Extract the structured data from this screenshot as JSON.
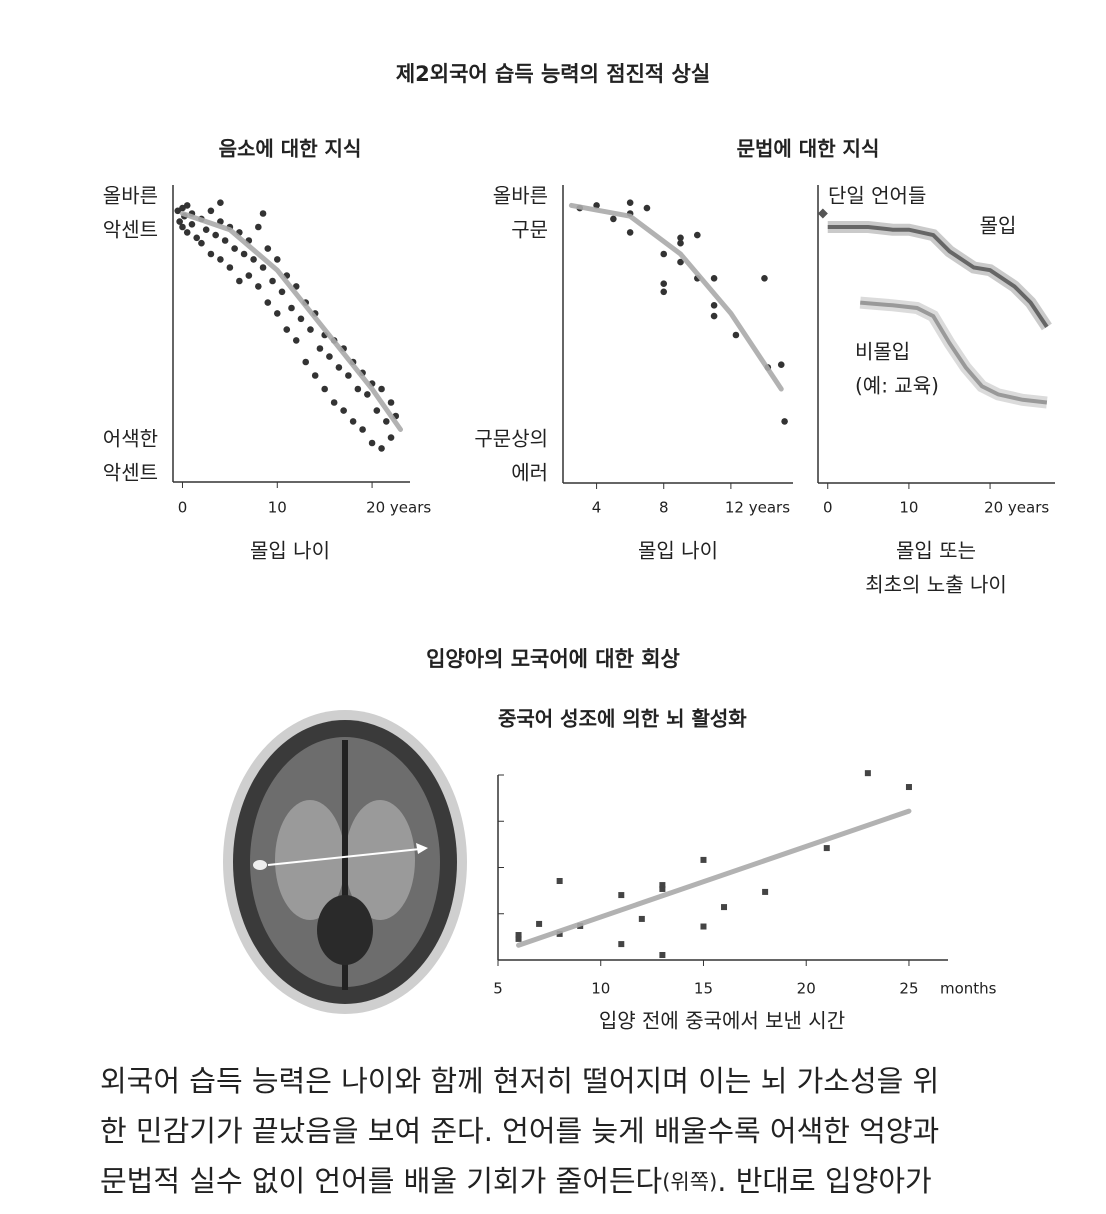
{
  "title": "제2외국어 습득 능력의 점진적 상실",
  "section_title": "입양아의 모국어에 대한 회상",
  "caption": [
    "외국어 습득 능력은 나이와 함께 현저히 떨어지며 이는 뇌 가소성을 위",
    "한 민감기가 끝났음을 보여 준다. 언어를 늦게 배울수록 어색한 억양과",
    [
      "문법적 실수 없이 언어를 배울 기회가 줄어든다",
      "(위쪽)",
      ". 반대로 입양아가"
    ]
  ],
  "chart_data": [
    {
      "type": "scatter",
      "title": "음소에 대한 지식",
      "ylabel_top": [
        "올바른",
        "악센트"
      ],
      "ylabel_bottom": [
        "어색한",
        "악센트"
      ],
      "xlabel": [
        "몰입 나이"
      ],
      "xlim": [
        -1,
        24
      ],
      "ylim": [
        0,
        100
      ],
      "xticks": [
        0,
        10,
        {
          "value": 20,
          "label": "20 years"
        }
      ],
      "color": "#333333",
      "fit_color": "#aaaaaa",
      "x": [
        -0.5,
        -0.3,
        0,
        0,
        0.2,
        0.5,
        0.5,
        1,
        1,
        1.5,
        2,
        2,
        2.5,
        3,
        3,
        3.5,
        4,
        4,
        4.5,
        5,
        5,
        5.5,
        6,
        6,
        6.5,
        7,
        7,
        7.5,
        8,
        8,
        8.5,
        9,
        9,
        9.5,
        10,
        10,
        10.5,
        11,
        11,
        11.5,
        12,
        12,
        12.5,
        13,
        13,
        13.5,
        14,
        14,
        14.5,
        15,
        15,
        15.5,
        16,
        16,
        16.5,
        17,
        17,
        17.5,
        18,
        18,
        18.5,
        19,
        19,
        19.5,
        20,
        20,
        20.5,
        21,
        21,
        21.5,
        22,
        22,
        22.5,
        8.5,
        4
      ],
      "values": [
        96,
        92,
        97,
        90,
        94,
        98,
        88,
        95,
        91,
        86,
        93,
        84,
        89,
        96,
        80,
        87,
        92,
        78,
        85,
        90,
        75,
        82,
        88,
        70,
        80,
        85,
        72,
        78,
        90,
        68,
        75,
        82,
        62,
        70,
        78,
        58,
        66,
        72,
        52,
        60,
        68,
        48,
        56,
        62,
        40,
        52,
        58,
        35,
        45,
        50,
        30,
        42,
        48,
        25,
        38,
        45,
        22,
        35,
        40,
        18,
        30,
        36,
        15,
        28,
        32,
        10,
        22,
        30,
        8,
        18,
        25,
        12,
        20,
        95,
        99
      ],
      "fit_x": [
        0,
        5,
        10,
        15,
        20,
        23
      ],
      "fit_values": [
        95,
        89,
        74,
        52,
        30,
        15
      ]
    },
    {
      "type": "scatter",
      "title": "문법에 대한 지식",
      "ylabel_top": [
        "올바른",
        "구문"
      ],
      "ylabel_bottom": [
        "구문상의",
        "에러"
      ],
      "xlabel": [
        "몰입 나이"
      ],
      "xlim": [
        2,
        15.7
      ],
      "ylim": [
        0,
        100
      ],
      "xticks": [
        4,
        8,
        {
          "value": 12,
          "label": "12  years"
        }
      ],
      "color": "#333333",
      "fit_color": "#aaaaaa",
      "x": [
        3,
        4,
        5,
        6,
        6,
        6,
        7,
        8,
        8,
        8,
        9,
        9,
        9,
        10,
        10,
        11,
        11,
        11,
        12.3,
        14,
        14.2,
        15,
        15.2
      ],
      "values": [
        97,
        98,
        93,
        99,
        95,
        88,
        97,
        80,
        69,
        66,
        86,
        84,
        77,
        87,
        71,
        61,
        57,
        71,
        50,
        71,
        38,
        39,
        18
      ],
      "fit_x": [
        2.5,
        6,
        9,
        12,
        15
      ],
      "fit_values": [
        98,
        94,
        80,
        58,
        30
      ]
    },
    {
      "type": "line",
      "xlabel": [
        "몰입 또는",
        "최초의 노출 나이"
      ],
      "xlim": [
        -1.2,
        28
      ],
      "ylim": [
        0,
        100
      ],
      "xticks": [
        0,
        10,
        {
          "value": 20,
          "label": "20 years"
        }
      ],
      "series": [
        {
          "name": "몰입",
          "color": "#666666",
          "x": [
            0,
            5,
            8,
            10,
            13,
            15,
            18,
            20,
            23,
            25,
            27
          ],
          "values": [
            90,
            90,
            89,
            89,
            87,
            81,
            75,
            74,
            68,
            62,
            53
          ]
        },
        {
          "name": "비몰입",
          "note": "(예: 교육)",
          "color": "#999999",
          "x": [
            4,
            8,
            11,
            13,
            15,
            17,
            19,
            21,
            24,
            27
          ],
          "values": [
            62,
            61,
            60,
            57,
            47,
            38,
            31,
            28,
            26,
            25
          ]
        },
        {
          "name": "단일 언어들",
          "color": "#555555",
          "x": [
            -0.6
          ],
          "values": [
            95
          ]
        }
      ]
    },
    {
      "type": "scatter",
      "title": "중국어 성조에 의한 뇌 활성화",
      "xlabel": [
        "입양 전에 중국에서 보낸 시간"
      ],
      "x_unit": "months",
      "xlim": [
        5,
        26.9
      ],
      "ylim": [
        0,
        100
      ],
      "xticks": [
        5,
        10,
        15,
        20,
        25
      ],
      "ytick_marks": [
        0,
        25,
        50,
        75,
        100
      ],
      "color": "#444444",
      "fit_color": "#aaaaaa",
      "marker": "square",
      "x": [
        6,
        6,
        7,
        8,
        8,
        9,
        11,
        11,
        12,
        13,
        13,
        13,
        15,
        15,
        16,
        18,
        21,
        23,
        25
      ],
      "values": [
        13.5,
        11.4,
        19.5,
        42.7,
        14.1,
        18.4,
        35.1,
        8.6,
        22.2,
        40.5,
        38.4,
        2.7,
        54.1,
        18.1,
        28.6,
        36.8,
        60.5,
        101,
        93.5
      ],
      "fit_x": [
        6,
        25
      ],
      "fit_values": [
        8,
        80.5
      ]
    }
  ]
}
